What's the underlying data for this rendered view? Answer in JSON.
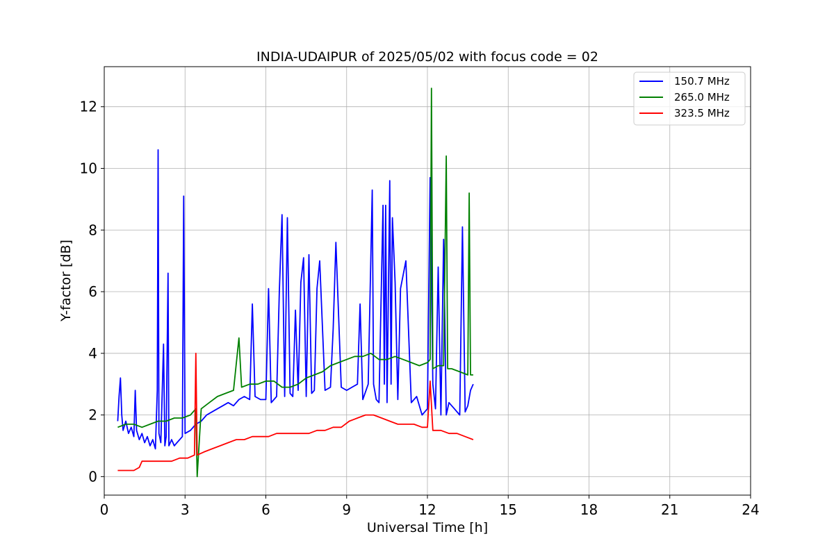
{
  "chart_data": {
    "type": "line",
    "title": "INDIA-UDAIPUR of 2025/05/02 with focus code = 02",
    "xlabel": "Universal Time [h]",
    "ylabel": "Y-factor [dB]",
    "xlim": [
      0,
      24
    ],
    "ylim": [
      -0.6,
      13.3
    ],
    "xticks": [
      0,
      3,
      6,
      9,
      12,
      15,
      18,
      21,
      24
    ],
    "yticks": [
      0,
      2,
      4,
      6,
      8,
      10,
      12
    ],
    "grid": true,
    "legend_position": "top-right",
    "series": [
      {
        "name": "150.7 MHz",
        "color": "#0000ff",
        "x": [
          0.5,
          0.55,
          0.6,
          0.65,
          0.7,
          0.8,
          0.9,
          1.0,
          1.1,
          1.15,
          1.2,
          1.3,
          1.4,
          1.5,
          1.6,
          1.7,
          1.8,
          1.9,
          1.97,
          2.0,
          2.03,
          2.1,
          2.2,
          2.25,
          2.3,
          2.37,
          2.4,
          2.5,
          2.6,
          2.7,
          2.8,
          2.9,
          2.95,
          3.0,
          3.2,
          3.4,
          3.6,
          3.8,
          4.0,
          4.2,
          4.4,
          4.6,
          4.8,
          5.0,
          5.2,
          5.4,
          5.5,
          5.6,
          5.8,
          6.0,
          6.1,
          6.2,
          6.4,
          6.5,
          6.6,
          6.7,
          6.8,
          6.9,
          7.0,
          7.1,
          7.2,
          7.3,
          7.4,
          7.5,
          7.6,
          7.7,
          7.8,
          7.9,
          8.0,
          8.2,
          8.4,
          8.5,
          8.6,
          8.8,
          9.0,
          9.2,
          9.4,
          9.5,
          9.6,
          9.8,
          9.95,
          10.0,
          10.1,
          10.2,
          10.35,
          10.4,
          10.45,
          10.5,
          10.6,
          10.65,
          10.7,
          10.8,
          10.9,
          11.0,
          11.2,
          11.4,
          11.6,
          11.8,
          12.0,
          12.1,
          12.2,
          12.3,
          12.4,
          12.5,
          12.6,
          12.7,
          12.8,
          13.0,
          13.2,
          13.3,
          13.4,
          13.5,
          13.6,
          13.7
        ],
        "y": [
          1.8,
          2.6,
          3.2,
          2.0,
          1.5,
          1.8,
          1.4,
          1.6,
          1.3,
          2.8,
          1.5,
          1.2,
          1.4,
          1.1,
          1.3,
          1.0,
          1.2,
          0.9,
          2.8,
          10.6,
          1.4,
          1.1,
          4.3,
          1.0,
          1.3,
          6.6,
          1.0,
          1.2,
          1.0,
          1.1,
          1.2,
          1.3,
          9.1,
          1.4,
          1.5,
          1.7,
          1.8,
          2.0,
          2.1,
          2.2,
          2.3,
          2.4,
          2.3,
          2.5,
          2.6,
          2.5,
          5.6,
          2.6,
          2.5,
          2.5,
          6.1,
          2.4,
          2.6,
          6.0,
          8.5,
          2.6,
          8.4,
          2.7,
          2.6,
          5.4,
          2.8,
          6.3,
          7.1,
          2.6,
          7.2,
          2.7,
          2.8,
          6.1,
          7.0,
          2.8,
          2.9,
          4.8,
          7.6,
          2.9,
          2.8,
          2.9,
          3.0,
          5.6,
          2.5,
          3.0,
          9.3,
          3.0,
          2.5,
          2.4,
          8.8,
          3.0,
          8.8,
          2.4,
          9.6,
          3.0,
          8.4,
          6.3,
          2.5,
          6.1,
          7.0,
          2.4,
          2.6,
          2.0,
          2.2,
          9.7,
          3.0,
          2.2,
          6.8,
          2.0,
          7.7,
          2.0,
          2.4,
          2.2,
          2.0,
          8.1,
          2.1,
          2.3,
          2.8,
          3.0
        ]
      },
      {
        "name": "265.0 MHz",
        "color": "#008000",
        "x": [
          0.5,
          0.8,
          1.1,
          1.4,
          1.7,
          2.0,
          2.3,
          2.6,
          2.9,
          3.2,
          3.4,
          3.45,
          3.6,
          3.9,
          4.2,
          4.5,
          4.8,
          5.0,
          5.1,
          5.4,
          5.7,
          6.0,
          6.3,
          6.6,
          6.9,
          7.2,
          7.5,
          7.8,
          8.1,
          8.4,
          8.7,
          9.0,
          9.3,
          9.6,
          9.9,
          10.2,
          10.5,
          10.8,
          11.1,
          11.4,
          11.7,
          12.0,
          12.1,
          12.15,
          12.2,
          12.4,
          12.6,
          12.7,
          12.75,
          12.9,
          13.2,
          13.5,
          13.55,
          13.6,
          13.7
        ],
        "y": [
          1.6,
          1.7,
          1.7,
          1.6,
          1.7,
          1.8,
          1.8,
          1.9,
          1.9,
          2.0,
          2.2,
          0.0,
          2.2,
          2.4,
          2.6,
          2.7,
          2.8,
          4.5,
          2.9,
          3.0,
          3.0,
          3.1,
          3.1,
          2.9,
          2.9,
          3.0,
          3.2,
          3.3,
          3.4,
          3.6,
          3.7,
          3.8,
          3.9,
          3.9,
          4.0,
          3.8,
          3.8,
          3.9,
          3.8,
          3.7,
          3.6,
          3.7,
          3.8,
          12.6,
          3.5,
          3.6,
          3.6,
          10.4,
          3.5,
          3.5,
          3.4,
          3.3,
          9.2,
          3.3,
          3.3
        ]
      },
      {
        "name": "323.5 MHz",
        "color": "#ff0000",
        "x": [
          0.5,
          0.8,
          1.1,
          1.3,
          1.4,
          1.6,
          1.9,
          2.2,
          2.5,
          2.8,
          3.1,
          3.35,
          3.4,
          3.45,
          3.7,
          4.0,
          4.3,
          4.6,
          4.9,
          5.2,
          5.5,
          5.8,
          6.1,
          6.4,
          6.7,
          7.0,
          7.3,
          7.6,
          7.9,
          8.2,
          8.5,
          8.8,
          9.1,
          9.4,
          9.7,
          10.0,
          10.3,
          10.6,
          10.9,
          11.2,
          11.5,
          11.8,
          12.0,
          12.1,
          12.2,
          12.5,
          12.8,
          13.1,
          13.4,
          13.7
        ],
        "y": [
          0.2,
          0.2,
          0.2,
          0.3,
          0.5,
          0.5,
          0.5,
          0.5,
          0.5,
          0.6,
          0.6,
          0.7,
          4.0,
          0.7,
          0.8,
          0.9,
          1.0,
          1.1,
          1.2,
          1.2,
          1.3,
          1.3,
          1.3,
          1.4,
          1.4,
          1.4,
          1.4,
          1.4,
          1.5,
          1.5,
          1.6,
          1.6,
          1.8,
          1.9,
          2.0,
          2.0,
          1.9,
          1.8,
          1.7,
          1.7,
          1.7,
          1.6,
          1.6,
          3.1,
          1.5,
          1.5,
          1.4,
          1.4,
          1.3,
          1.2
        ]
      }
    ]
  }
}
